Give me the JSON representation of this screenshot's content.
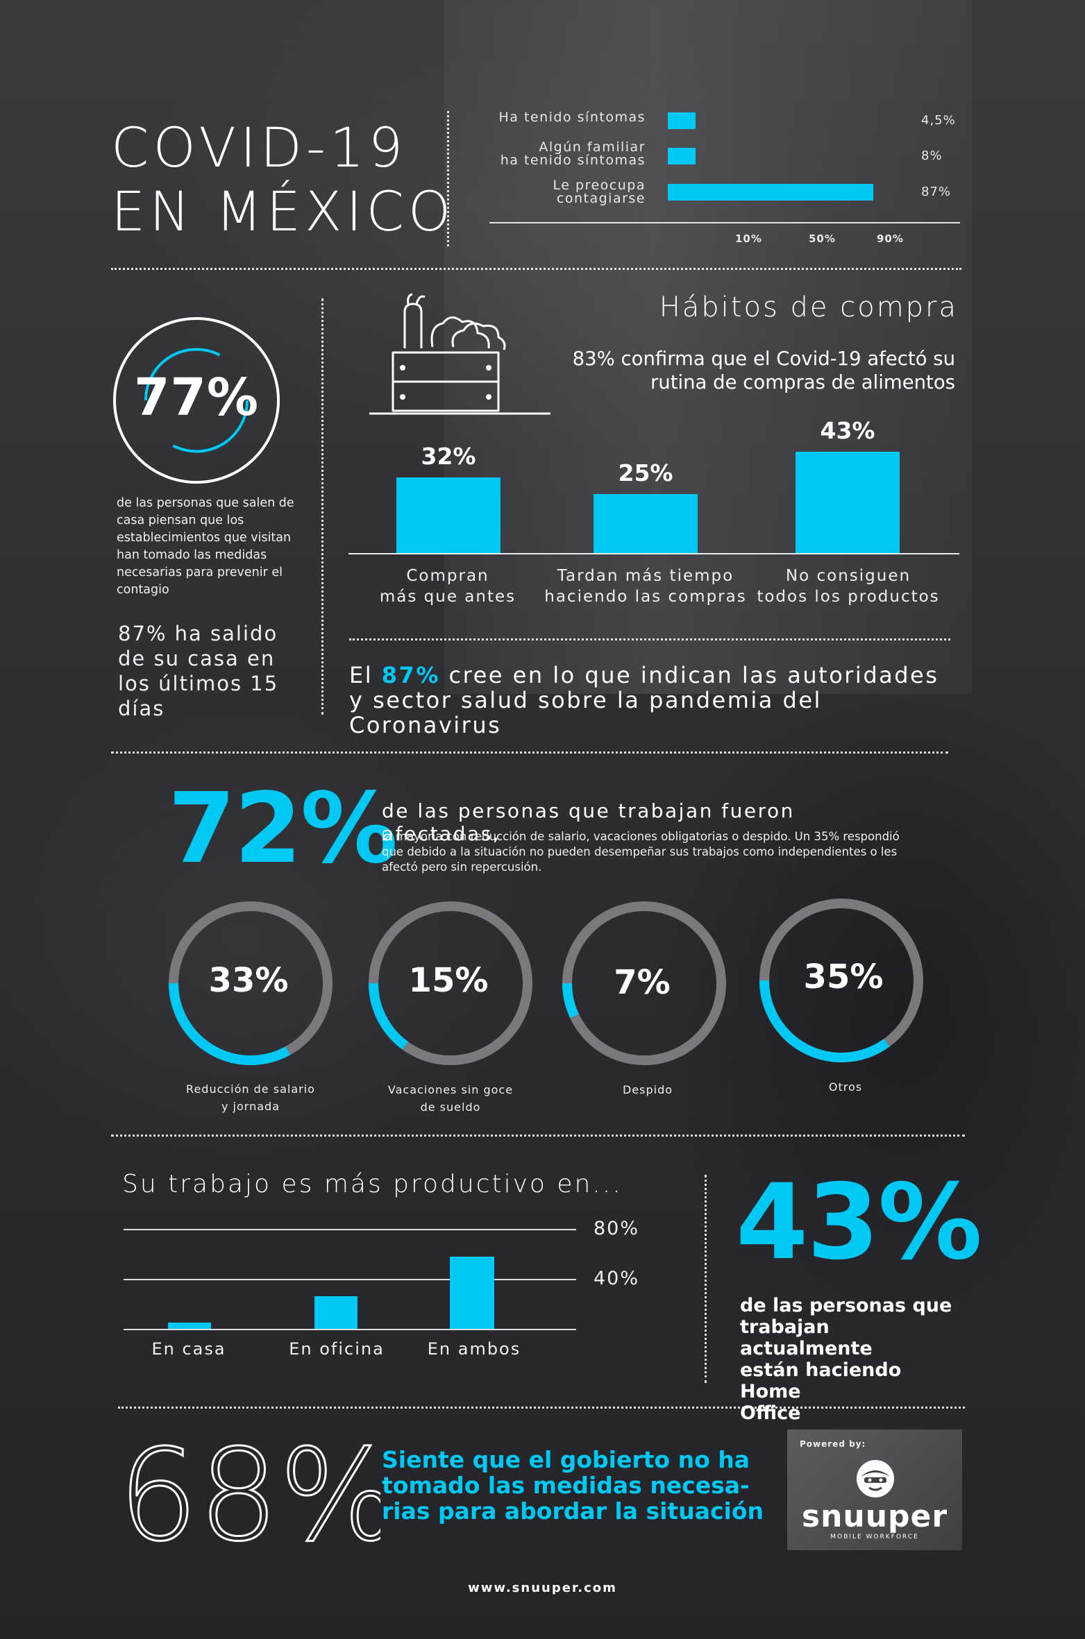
{
  "title": {
    "line1": "COVID-19",
    "line2": "EN MÉXICO"
  },
  "symptoms_chart": {
    "rows": [
      {
        "label_line1": "Ha tenido síntomas",
        "label_line2": "",
        "value": 4.5,
        "value_label": "4,5%"
      },
      {
        "label_line1": "Algún familiar",
        "label_line2": "ha tenido síntomas",
        "value": 8,
        "value_label": "8%"
      },
      {
        "label_line1": "Le preocupa",
        "label_line2": "contagiarse",
        "value": 87,
        "value_label": "87%"
      }
    ],
    "ticks": [
      "10%",
      "50%",
      "90%"
    ]
  },
  "stat77": {
    "value": "77%",
    "description": "de las personas que salen de casa piensan que los establecimientos que visitan han tomado las medidas necesarias para prevenir el contagio"
  },
  "stat87_salido": "87% ha salido de su casa en los últimos 15 días",
  "habitos": {
    "title": "Hábitos de compra",
    "subtitle_line1": "83% confirma que el Covid-19 afectó su",
    "subtitle_line2": "rutina de compras de alimentos",
    "icon": "vegetable-crate-icon"
  },
  "chart_data": {
    "type": "bar",
    "categories": [
      "Compran más que antes",
      "Tardan más tiempo haciendo las compras",
      "No consiguen todos los productos"
    ],
    "values": [
      32,
      25,
      43
    ],
    "value_labels": [
      "32%",
      "25%",
      "43%"
    ],
    "caption_lines": [
      [
        "Compran",
        "más que antes"
      ],
      [
        "Tardan más tiempo",
        "haciendo las compras"
      ],
      [
        "No consiguen",
        "todos los productos"
      ]
    ]
  },
  "autoridades": {
    "prefix": "El ",
    "highlight": "87%",
    "rest_line1": " cree en lo que indican las autoridades",
    "line2": "y sector salud sobre la pandemia del Coronavirus"
  },
  "trabajo": {
    "big": "72%",
    "headline": "de las personas que trabajan fueron afectadas,",
    "detail": "la mayoría con reducción de salario, vacaciones obligatorias o despido. Un 35% respondió que debido a la situación no pueden desempeñar sus trabajos como independientes o les afectó pero sin repercusión."
  },
  "rings": [
    {
      "label": "33%",
      "value": 33,
      "caption_line1": "Reducción de salario",
      "caption_line2": "y jornada"
    },
    {
      "label": "15%",
      "value": 15,
      "caption_line1": "Vacaciones sin goce",
      "caption_line2": "de sueldo"
    },
    {
      "label": "7%",
      "value": 7,
      "caption_line1": "Despido",
      "caption_line2": ""
    },
    {
      "label": "35%",
      "value": 35,
      "caption_line1": "Otros",
      "caption_line2": ""
    }
  ],
  "productivo": {
    "title": "Su trabajo es más productivo en...",
    "grid_labels": [
      "80%",
      "40%"
    ],
    "bars": [
      {
        "label": "En casa",
        "value": 5
      },
      {
        "label": "En oficina",
        "value": 26
      },
      {
        "label": "En ambos",
        "value": 58
      }
    ]
  },
  "home_office": {
    "big": "43%",
    "line1": "de las personas que",
    "line2": "trabajan actualmente",
    "line3": "están haciendo Home",
    "line4": "Office"
  },
  "gobierno": {
    "big": "68%",
    "line1": "Siente que el gobierto no ha",
    "line2": "tomado las medidas necesa-",
    "line3": "rias para abordar la situación"
  },
  "logo": {
    "powered_by": "Powered by:",
    "brand": "snuuper",
    "tagline": "MOBILE WORKFORCE"
  },
  "footer": {
    "url": "www.snuuper.com"
  },
  "colors": {
    "accent": "#00c8f5",
    "background": "#2e2f33"
  }
}
